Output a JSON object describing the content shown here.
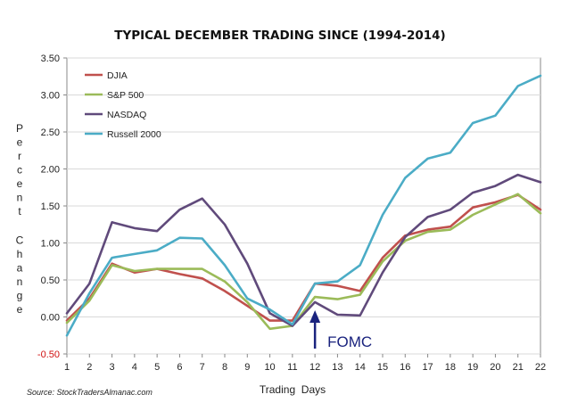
{
  "chart_data": {
    "type": "line",
    "title": "TYPICAL DECEMBER TRADING SINCE (1994-2014)",
    "xlabel": "Trading  Days",
    "ylabel": "Percent Change",
    "x": [
      1,
      2,
      3,
      4,
      5,
      6,
      7,
      8,
      9,
      10,
      11,
      12,
      13,
      14,
      15,
      16,
      17,
      18,
      19,
      20,
      21,
      22
    ],
    "ylim": [
      -0.5,
      3.5
    ],
    "y_ticks": [
      "-0.50",
      "0.00",
      "0.50",
      "1.00",
      "1.50",
      "2.00",
      "2.50",
      "3.00",
      "3.50"
    ],
    "y_tick_values": [
      -0.5,
      0,
      0.5,
      1,
      1.5,
      2,
      2.5,
      3,
      3.5
    ],
    "grid": true,
    "legend_position": "top-left",
    "series": [
      {
        "name": "DJIA",
        "color": "#c0504d",
        "values": [
          -0.05,
          0.25,
          0.72,
          0.6,
          0.65,
          0.58,
          0.52,
          0.35,
          0.15,
          -0.05,
          -0.05,
          0.45,
          0.42,
          0.35,
          0.8,
          1.1,
          1.18,
          1.22,
          1.48,
          1.55,
          1.65,
          1.45
        ]
      },
      {
        "name": "S&P 500",
        "color": "#9bbb59",
        "values": [
          -0.08,
          0.22,
          0.7,
          0.62,
          0.65,
          0.65,
          0.65,
          0.48,
          0.2,
          -0.16,
          -0.12,
          0.27,
          0.24,
          0.3,
          0.75,
          1.03,
          1.15,
          1.18,
          1.38,
          1.52,
          1.66,
          1.4
        ]
      },
      {
        "name": "NASDAQ",
        "color": "#604a7b",
        "values": [
          0.05,
          0.45,
          1.28,
          1.2,
          1.16,
          1.45,
          1.6,
          1.25,
          0.72,
          0.05,
          -0.12,
          0.2,
          0.03,
          0.02,
          0.6,
          1.08,
          1.35,
          1.45,
          1.68,
          1.77,
          1.92,
          1.82
        ]
      },
      {
        "name": "Russell 2000",
        "color": "#4bacc6",
        "values": [
          -0.25,
          0.32,
          0.8,
          0.85,
          0.9,
          1.07,
          1.06,
          0.7,
          0.25,
          0.1,
          -0.1,
          0.45,
          0.48,
          0.7,
          1.38,
          1.88,
          2.14,
          2.22,
          2.62,
          2.72,
          3.12,
          3.26
        ]
      }
    ],
    "annotations": [
      {
        "text": "FOMC",
        "x": 12
      }
    ],
    "source": "Source: StockTradersAlmanac.com"
  },
  "colors": {
    "axis": "#888888",
    "grid": "#d9d9d9",
    "arrow": "#1a237e",
    "negative_tick": "#d01010"
  }
}
